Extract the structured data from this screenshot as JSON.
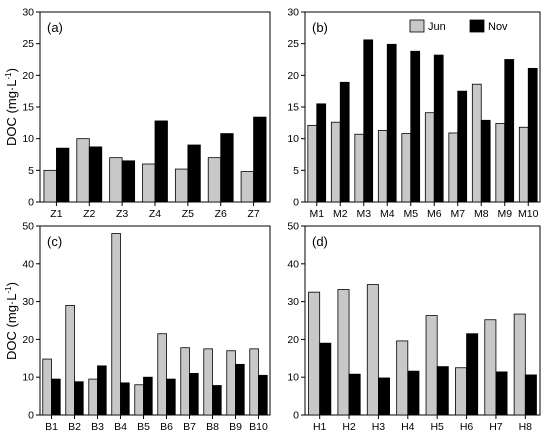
{
  "colors": {
    "jun": "#c8c8c8",
    "nov": "#000000",
    "axis": "#000000"
  },
  "legend": {
    "jun_label": "Jun",
    "nov_label": "Nov",
    "placement": "top-right of panel (b)"
  },
  "ylabel": {
    "main": "DOC (mg·L",
    "sup": "-1",
    "close": ")"
  },
  "chart_data": [
    {
      "type": "bar",
      "panel": "(a)",
      "categories": [
        "Z1",
        "Z2",
        "Z3",
        "Z4",
        "Z5",
        "Z6",
        "Z7"
      ],
      "series": [
        {
          "name": "Jun",
          "values": [
            5.0,
            10.0,
            7.0,
            6.0,
            5.2,
            7.0,
            4.8
          ]
        },
        {
          "name": "Nov",
          "values": [
            8.5,
            8.7,
            6.5,
            12.8,
            9.0,
            10.8,
            13.4
          ]
        }
      ],
      "ylim": [
        0,
        30
      ],
      "yticks": [
        "0",
        "5",
        "10",
        "15",
        "20",
        "25",
        "30"
      ],
      "ylabel": "DOC (mg·L-1)"
    },
    {
      "type": "bar",
      "panel": "(b)",
      "categories": [
        "M1",
        "M2",
        "M3",
        "M4",
        "M5",
        "M6",
        "M7",
        "M8",
        "M9",
        "M10"
      ],
      "series": [
        {
          "name": "Jun",
          "values": [
            12.1,
            12.6,
            10.7,
            11.3,
            10.8,
            14.1,
            10.9,
            18.6,
            12.4,
            11.8
          ]
        },
        {
          "name": "Nov",
          "values": [
            15.5,
            18.9,
            25.6,
            24.9,
            23.8,
            23.2,
            17.5,
            12.9,
            22.5,
            21.1
          ]
        }
      ],
      "ylim": [
        0,
        30
      ],
      "yticks": [
        "0",
        "5",
        "10",
        "15",
        "20",
        "25",
        "30"
      ]
    },
    {
      "type": "bar",
      "panel": "(c)",
      "categories": [
        "B1",
        "B2",
        "B3",
        "B4",
        "B5",
        "B6",
        "B7",
        "B8",
        "B9",
        "B10"
      ],
      "series": [
        {
          "name": "Jun",
          "values": [
            14.8,
            29.0,
            9.5,
            48.0,
            8.0,
            21.5,
            17.8,
            17.5,
            17.0,
            17.5
          ]
        },
        {
          "name": "Nov",
          "values": [
            9.5,
            8.8,
            13.0,
            8.5,
            10.0,
            9.5,
            11.0,
            7.8,
            13.4,
            10.5
          ]
        }
      ],
      "ylim": [
        0,
        50
      ],
      "yticks": [
        "0",
        "10",
        "20",
        "30",
        "40",
        "50"
      ],
      "ylabel": "DOC (mg·L-1)"
    },
    {
      "type": "bar",
      "panel": "(d)",
      "categories": [
        "H1",
        "H2",
        "H3",
        "H4",
        "H5",
        "H6",
        "H7",
        "H8"
      ],
      "series": [
        {
          "name": "Jun",
          "values": [
            32.5,
            33.2,
            34.5,
            19.6,
            26.3,
            12.5,
            25.2,
            26.7
          ]
        },
        {
          "name": "Nov",
          "values": [
            19.0,
            10.8,
            9.8,
            11.6,
            12.8,
            21.5,
            11.4,
            10.6
          ]
        }
      ],
      "ylim": [
        0,
        50
      ],
      "yticks": [
        "0",
        "10",
        "20",
        "30",
        "40",
        "50"
      ]
    }
  ]
}
